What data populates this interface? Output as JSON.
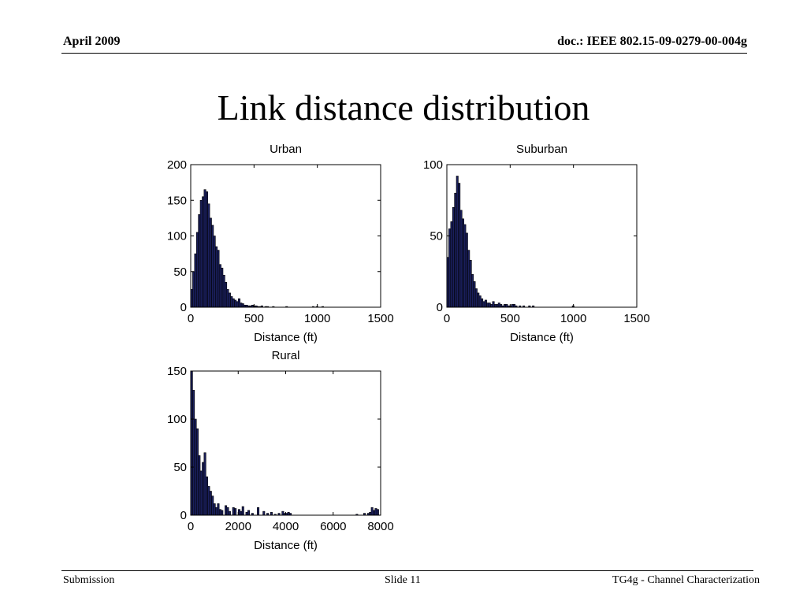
{
  "header": {
    "date": "April 2009",
    "doc": "doc.: IEEE 802.15-09-0279-00-004g"
  },
  "slide": {
    "title": "Link distance distribution"
  },
  "footer": {
    "left": "Submission",
    "center": "Slide 11",
    "right": "TG4g - Channel Characterization"
  },
  "colors": {
    "bar_fill": "#1a1f5c",
    "bar_edge": "#000000",
    "axes": "#000000"
  },
  "chart_data": [
    {
      "type": "bar",
      "title": "Urban",
      "xlabel": "Distance (ft)",
      "ylabel": "",
      "xlim": [
        0,
        1500
      ],
      "ylim": [
        0,
        200
      ],
      "xticks": [
        "0",
        "500",
        "1000",
        "1500"
      ],
      "yticks": [
        "0",
        "50",
        "100",
        "150",
        "200"
      ],
      "bin_width": 15,
      "x": [
        0,
        15,
        30,
        45,
        60,
        75,
        90,
        105,
        120,
        135,
        150,
        165,
        180,
        195,
        210,
        225,
        240,
        255,
        270,
        285,
        300,
        315,
        330,
        345,
        360,
        375,
        390,
        405,
        420,
        435,
        450,
        465,
        480,
        495,
        510,
        525,
        540,
        555,
        585,
        600,
        645,
        750,
        960,
        990,
        1035
      ],
      "values": [
        25,
        50,
        75,
        105,
        130,
        150,
        155,
        165,
        162,
        145,
        125,
        115,
        100,
        85,
        80,
        60,
        55,
        45,
        35,
        25,
        20,
        15,
        12,
        10,
        8,
        12,
        6,
        5,
        3,
        3,
        2,
        2,
        3,
        2,
        2,
        1,
        1,
        2,
        1,
        1,
        1,
        1,
        1,
        1,
        1
      ]
    },
    {
      "type": "bar",
      "title": "Suburban",
      "xlabel": "Distance (ft)",
      "ylabel": "",
      "xlim": [
        0,
        1500
      ],
      "ylim": [
        0,
        100
      ],
      "xticks": [
        "0",
        "500",
        "1000",
        "1500"
      ],
      "yticks": [
        "0",
        "50",
        "100"
      ],
      "bin_width": 15,
      "x": [
        0,
        15,
        30,
        45,
        60,
        75,
        90,
        105,
        120,
        135,
        150,
        165,
        180,
        195,
        210,
        225,
        240,
        255,
        270,
        285,
        300,
        315,
        330,
        345,
        360,
        375,
        390,
        405,
        420,
        435,
        450,
        465,
        480,
        495,
        510,
        525,
        540,
        570,
        600,
        645,
        675,
        990
      ],
      "values": [
        35,
        55,
        60,
        70,
        80,
        92,
        87,
        68,
        62,
        58,
        52,
        40,
        33,
        23,
        18,
        13,
        10,
        8,
        6,
        4,
        5,
        3,
        3,
        2,
        4,
        2,
        2,
        3,
        2,
        1,
        2,
        2,
        1,
        1,
        2,
        2,
        1,
        1,
        1,
        1,
        1,
        1
      ]
    },
    {
      "type": "bar",
      "title": "Rural",
      "xlabel": "Distance (ft)",
      "ylabel": "",
      "xlim": [
        0,
        8000
      ],
      "ylim": [
        0,
        150
      ],
      "xticks": [
        "0",
        "2000",
        "4000",
        "6000",
        "8000"
      ],
      "yticks": [
        "0",
        "50",
        "100",
        "150"
      ],
      "bin_width": 80,
      "x": [
        0,
        80,
        160,
        240,
        320,
        400,
        480,
        560,
        640,
        720,
        800,
        880,
        960,
        1040,
        1120,
        1200,
        1280,
        1440,
        1520,
        1600,
        1760,
        1840,
        2000,
        2080,
        2160,
        2320,
        2400,
        2560,
        2800,
        3040,
        3200,
        3360,
        3520,
        3680,
        3840,
        3920,
        4000,
        4080,
        4160,
        6960,
        7280,
        7440,
        7520,
        7600,
        7680,
        7760,
        7840
      ],
      "values": [
        150,
        130,
        100,
        90,
        62,
        46,
        55,
        65,
        40,
        30,
        25,
        20,
        12,
        8,
        12,
        6,
        5,
        10,
        8,
        4,
        8,
        7,
        6,
        4,
        9,
        3,
        5,
        2,
        8,
        4,
        2,
        3,
        1,
        2,
        4,
        2,
        2,
        3,
        2,
        1,
        2,
        2,
        3,
        8,
        5,
        7,
        6
      ]
    }
  ]
}
